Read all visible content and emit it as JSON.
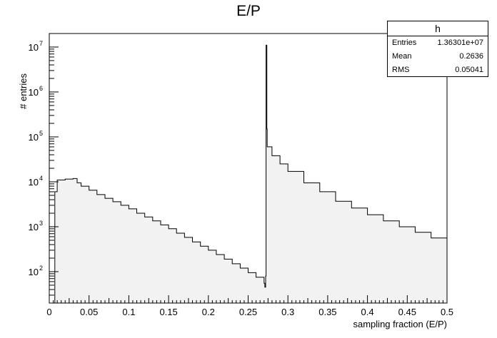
{
  "title": "E/P",
  "stats_box": {
    "name": "h",
    "rows": [
      {
        "label": "Entries",
        "value": "1.36301e+07"
      },
      {
        "label": "Mean",
        "value": "0.2636"
      },
      {
        "label": "RMS",
        "value": "0.05041"
      }
    ]
  },
  "colors": {
    "fill": "#f2f2f2",
    "line": "#000000"
  },
  "chart_data": {
    "type": "histogram",
    "title": "E/P",
    "xlabel": "sampling fraction (E/P)",
    "ylabel": "# entries",
    "xlim": [
      0,
      0.5
    ],
    "ylim": [
      20,
      20000000
    ],
    "yscale": "log",
    "x_ticks": [
      "0",
      "0.05",
      "0.1",
      "0.15",
      "0.2",
      "0.25",
      "0.3",
      "0.35",
      "0.4",
      "0.45",
      "0.5"
    ],
    "y_ticks": [
      {
        "base": "10",
        "exp": "2"
      },
      {
        "base": "10",
        "exp": "3"
      },
      {
        "base": "10",
        "exp": "4"
      },
      {
        "base": "10",
        "exp": "5"
      },
      {
        "base": "10",
        "exp": "6"
      },
      {
        "base": "10",
        "exp": "7"
      }
    ],
    "series": [
      {
        "points": [
          [
            0.0,
            20
          ],
          [
            0.004,
            20
          ],
          [
            0.007,
            6000
          ],
          [
            0.01,
            11000
          ],
          [
            0.02,
            11500
          ],
          [
            0.03,
            11800
          ],
          [
            0.035,
            9500
          ],
          [
            0.04,
            8000
          ],
          [
            0.05,
            6500
          ],
          [
            0.06,
            5200
          ],
          [
            0.07,
            4300
          ],
          [
            0.08,
            3600
          ],
          [
            0.09,
            3000
          ],
          [
            0.1,
            2500
          ],
          [
            0.11,
            2000
          ],
          [
            0.12,
            1650
          ],
          [
            0.13,
            1350
          ],
          [
            0.14,
            1100
          ],
          [
            0.15,
            900
          ],
          [
            0.16,
            720
          ],
          [
            0.17,
            580
          ],
          [
            0.18,
            460
          ],
          [
            0.19,
            370
          ],
          [
            0.2,
            300
          ],
          [
            0.21,
            240
          ],
          [
            0.22,
            190
          ],
          [
            0.23,
            150
          ],
          [
            0.24,
            120
          ],
          [
            0.25,
            95
          ],
          [
            0.26,
            75
          ],
          [
            0.27,
            55
          ],
          [
            0.271,
            45
          ],
          [
            0.272,
            80
          ],
          [
            0.2725,
            11000000
          ],
          [
            0.273,
            11000000
          ],
          [
            0.2735,
            150000
          ],
          [
            0.274,
            60000
          ],
          [
            0.28,
            38000
          ],
          [
            0.29,
            25000
          ],
          [
            0.3,
            17000
          ],
          [
            0.32,
            9500
          ],
          [
            0.34,
            6000
          ],
          [
            0.36,
            3700
          ],
          [
            0.38,
            2600
          ],
          [
            0.4,
            1850
          ],
          [
            0.42,
            1350
          ],
          [
            0.44,
            1000
          ],
          [
            0.46,
            750
          ],
          [
            0.48,
            560
          ],
          [
            0.5,
            390
          ]
        ]
      }
    ]
  }
}
